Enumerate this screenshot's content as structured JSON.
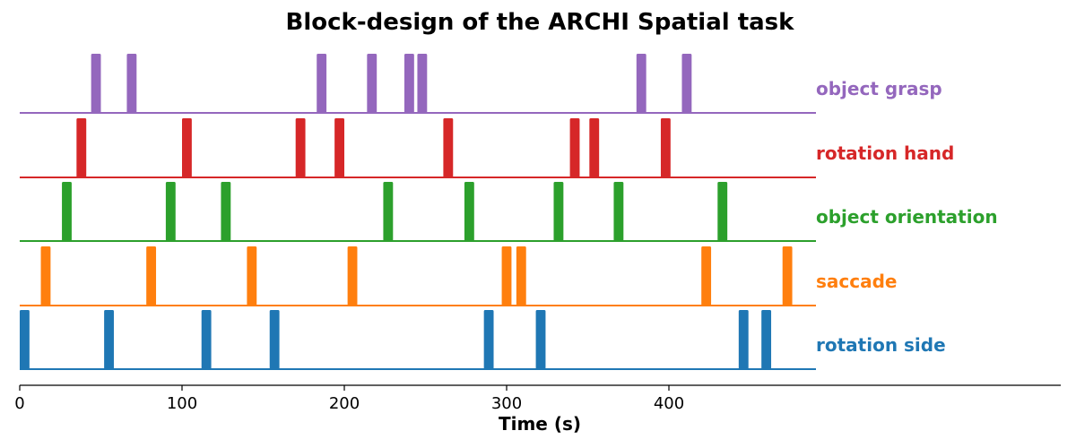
{
  "chart_data": {
    "type": "bar",
    "title": "Block-design of the ARCHI Spatial task",
    "xlabel": "Time (s)",
    "ylabel": "",
    "xlim": [
      0,
      600
    ],
    "xticks": [
      "0",
      "100",
      "200",
      "300",
      "400"
    ],
    "xtick_values": [
      0,
      100,
      200,
      300,
      400
    ],
    "block_duration": 6,
    "series": [
      {
        "name": "object grasp",
        "color": "#9467bd",
        "onsets": [
          44,
          66,
          183,
          214,
          237,
          245,
          380,
          408
        ]
      },
      {
        "name": "rotation hand",
        "color": "#d62728",
        "onsets": [
          35,
          100,
          170,
          194,
          261,
          339,
          351,
          395
        ]
      },
      {
        "name": "object orientation",
        "color": "#2ca02c",
        "onsets": [
          26,
          90,
          124,
          224,
          274,
          329,
          366,
          430
        ]
      },
      {
        "name": "saccade",
        "color": "#ff7f0e",
        "onsets": [
          13,
          78,
          140,
          202,
          297,
          306,
          420,
          470
        ]
      },
      {
        "name": "rotation side",
        "color": "#1f77b4",
        "onsets": [
          0,
          52,
          112,
          154,
          286,
          318,
          443,
          457
        ]
      }
    ]
  }
}
